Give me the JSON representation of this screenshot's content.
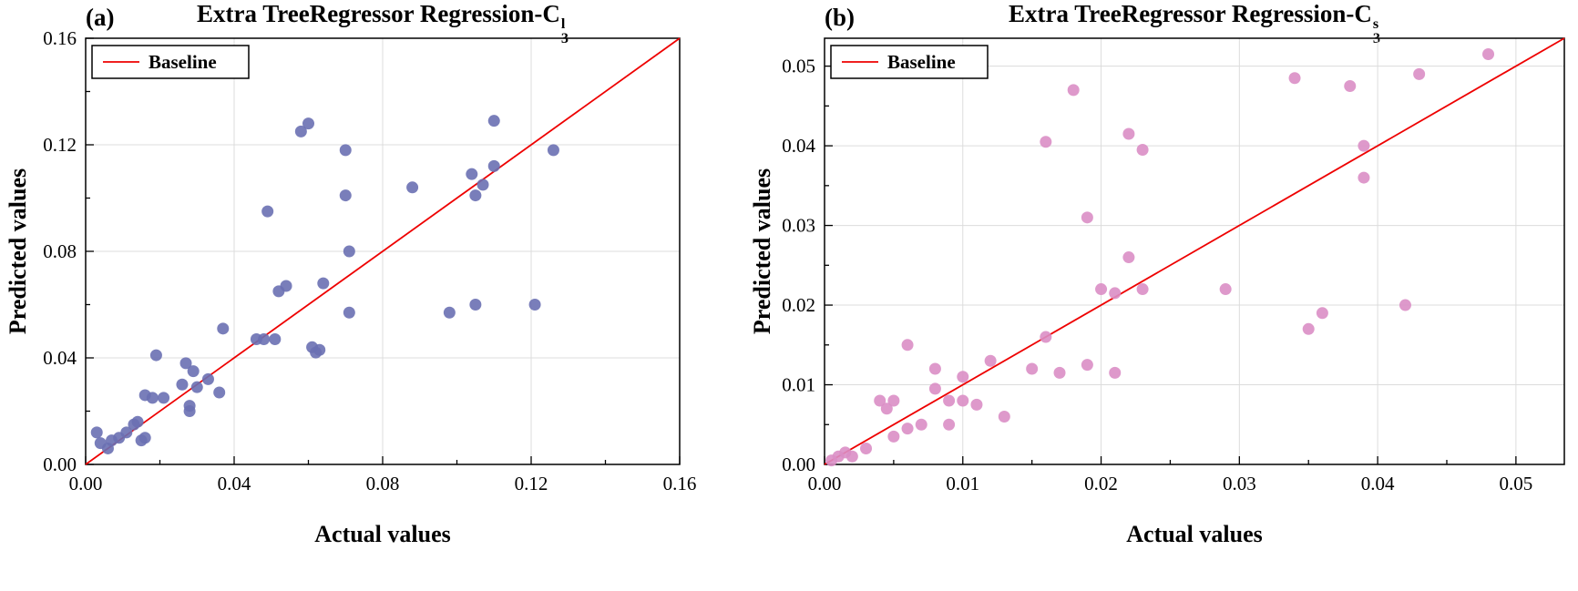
{
  "figure": {
    "background": "#ffffff",
    "grid_color": "#dcdcdc",
    "axis_color": "#000000",
    "baseline_color": "#ee0000"
  },
  "chart_data": [
    {
      "type": "scatter",
      "panel_label": "(a)",
      "title_prefix": "Extra TreeRegressor Regression-C",
      "title_sub": "3",
      "title_sup": "l",
      "xlabel": "Actual values",
      "ylabel": "Predicted values",
      "xlim": [
        0,
        0.16
      ],
      "ylim": [
        0,
        0.16
      ],
      "xticks": [
        0,
        0.04,
        0.08,
        0.12,
        0.16
      ],
      "yticks": [
        0,
        0.04,
        0.08,
        0.12,
        0.16
      ],
      "grid": true,
      "legend": {
        "label": "Baseline",
        "position": "upper-left",
        "line_color": "#ee0000"
      },
      "marker_color": "#6a70b3",
      "baseline": {
        "from": [
          0,
          0
        ],
        "to": [
          0.16,
          0.16
        ]
      },
      "points": [
        [
          0.003,
          0.012
        ],
        [
          0.004,
          0.008
        ],
        [
          0.006,
          0.006
        ],
        [
          0.007,
          0.009
        ],
        [
          0.009,
          0.01
        ],
        [
          0.011,
          0.012
        ],
        [
          0.013,
          0.015
        ],
        [
          0.014,
          0.016
        ],
        [
          0.015,
          0.009
        ],
        [
          0.016,
          0.01
        ],
        [
          0.016,
          0.026
        ],
        [
          0.018,
          0.025
        ],
        [
          0.019,
          0.041
        ],
        [
          0.021,
          0.025
        ],
        [
          0.026,
          0.03
        ],
        [
          0.027,
          0.038
        ],
        [
          0.028,
          0.022
        ],
        [
          0.028,
          0.02
        ],
        [
          0.029,
          0.035
        ],
        [
          0.03,
          0.029
        ],
        [
          0.033,
          0.032
        ],
        [
          0.036,
          0.027
        ],
        [
          0.037,
          0.051
        ],
        [
          0.046,
          0.047
        ],
        [
          0.048,
          0.047
        ],
        [
          0.049,
          0.095
        ],
        [
          0.051,
          0.047
        ],
        [
          0.052,
          0.065
        ],
        [
          0.054,
          0.067
        ],
        [
          0.058,
          0.125
        ],
        [
          0.06,
          0.128
        ],
        [
          0.061,
          0.044
        ],
        [
          0.062,
          0.042
        ],
        [
          0.063,
          0.043
        ],
        [
          0.064,
          0.068
        ],
        [
          0.07,
          0.118
        ],
        [
          0.07,
          0.101
        ],
        [
          0.071,
          0.08
        ],
        [
          0.071,
          0.057
        ],
        [
          0.088,
          0.104
        ],
        [
          0.098,
          0.057
        ],
        [
          0.104,
          0.109
        ],
        [
          0.105,
          0.101
        ],
        [
          0.105,
          0.06
        ],
        [
          0.107,
          0.105
        ],
        [
          0.11,
          0.129
        ],
        [
          0.11,
          0.112
        ],
        [
          0.121,
          0.06
        ],
        [
          0.126,
          0.118
        ]
      ]
    },
    {
      "type": "scatter",
      "panel_label": "(b)",
      "title_prefix": "Extra TreeRegressor Regression-C",
      "title_sub": "3",
      "title_sup": "s",
      "xlabel": "Actual values",
      "ylabel": "Predicted values",
      "xlim": [
        0,
        0.0535
      ],
      "ylim": [
        0,
        0.0535
      ],
      "xticks": [
        0,
        0.01,
        0.02,
        0.03,
        0.04,
        0.05
      ],
      "yticks": [
        0,
        0.01,
        0.02,
        0.03,
        0.04,
        0.05
      ],
      "grid": true,
      "legend": {
        "label": "Baseline",
        "position": "upper-left",
        "line_color": "#ee0000"
      },
      "marker_color": "#da8ec5",
      "baseline": {
        "from": [
          0,
          0
        ],
        "to": [
          0.0535,
          0.0535
        ]
      },
      "points": [
        [
          0.0005,
          0.0005
        ],
        [
          0.001,
          0.001
        ],
        [
          0.0015,
          0.0015
        ],
        [
          0.002,
          0.001
        ],
        [
          0.003,
          0.002
        ],
        [
          0.004,
          0.008
        ],
        [
          0.0045,
          0.007
        ],
        [
          0.005,
          0.0035
        ],
        [
          0.005,
          0.008
        ],
        [
          0.006,
          0.015
        ],
        [
          0.006,
          0.0045
        ],
        [
          0.007,
          0.005
        ],
        [
          0.008,
          0.012
        ],
        [
          0.008,
          0.0095
        ],
        [
          0.009,
          0.008
        ],
        [
          0.009,
          0.005
        ],
        [
          0.01,
          0.011
        ],
        [
          0.01,
          0.008
        ],
        [
          0.011,
          0.0075
        ],
        [
          0.012,
          0.013
        ],
        [
          0.013,
          0.006
        ],
        [
          0.015,
          0.012
        ],
        [
          0.016,
          0.0405
        ],
        [
          0.016,
          0.016
        ],
        [
          0.017,
          0.0115
        ],
        [
          0.018,
          0.047
        ],
        [
          0.019,
          0.031
        ],
        [
          0.019,
          0.0125
        ],
        [
          0.02,
          0.022
        ],
        [
          0.021,
          0.0215
        ],
        [
          0.021,
          0.0115
        ],
        [
          0.022,
          0.0415
        ],
        [
          0.022,
          0.026
        ],
        [
          0.023,
          0.0395
        ],
        [
          0.023,
          0.022
        ],
        [
          0.029,
          0.022
        ],
        [
          0.034,
          0.0485
        ],
        [
          0.035,
          0.017
        ],
        [
          0.036,
          0.019
        ],
        [
          0.038,
          0.0475
        ],
        [
          0.039,
          0.04
        ],
        [
          0.039,
          0.036
        ],
        [
          0.042,
          0.02
        ],
        [
          0.043,
          0.049
        ],
        [
          0.048,
          0.0515
        ]
      ]
    }
  ]
}
